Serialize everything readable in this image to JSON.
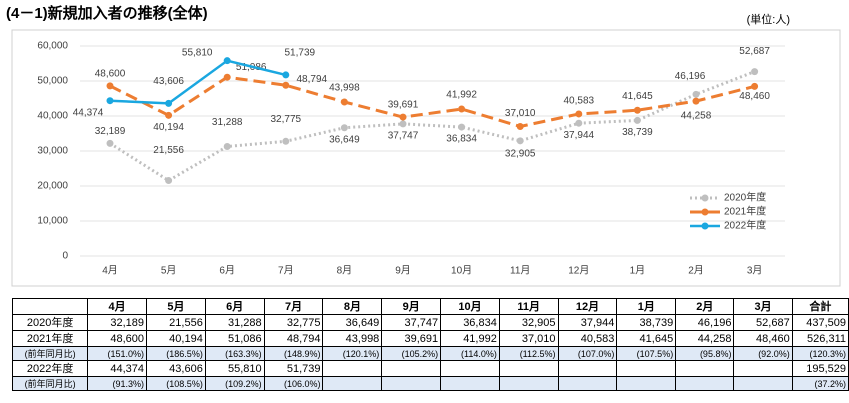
{
  "chart_data": {
    "type": "line",
    "title": "(4－1)新規加入者の推移(全体)",
    "unit_label": "(単位:人)",
    "categories": [
      "4月",
      "5月",
      "6月",
      "7月",
      "8月",
      "9月",
      "10月",
      "11月",
      "12月",
      "1月",
      "2月",
      "3月"
    ],
    "ylim": [
      0,
      60000
    ],
    "yticks": [
      0,
      {
        "value": 10000,
        "label": "10,000"
      },
      {
        "value": 20000,
        "label": "20,000"
      },
      {
        "value": 30000,
        "label": "30,000"
      },
      {
        "value": 40000,
        "label": "40,000"
      },
      {
        "value": 50000,
        "label": "50,000"
      },
      {
        "value": 60000,
        "label": "60,000"
      }
    ],
    "grid": true,
    "legend": "right",
    "series": [
      {
        "name": "2020年度",
        "color": "#bfbfbf",
        "style": "dotted",
        "values": [
          32189,
          21556,
          31288,
          32775,
          36649,
          37747,
          36834,
          32905,
          37944,
          38739,
          46196,
          52687
        ],
        "value_labels": [
          "32,189",
          "21,556",
          "31,288",
          "32,775",
          "36,649",
          "37,747",
          "36,834",
          "32,905",
          "37,944",
          "38,739",
          "46,196",
          "52,687"
        ]
      },
      {
        "name": "2021年度",
        "color": "#ed7d31",
        "style": "dashed",
        "values": [
          48600,
          40194,
          51086,
          48794,
          43998,
          39691,
          41992,
          37010,
          40583,
          41645,
          44258,
          48460
        ],
        "value_labels": [
          "48,600",
          "40,194",
          "51,086",
          "48,794",
          "43,998",
          "39,691",
          "41,992",
          "37,010",
          "40,583",
          "41,645",
          "44,258",
          "48,460"
        ]
      },
      {
        "name": "2022年度",
        "color": "#1aa7e0",
        "style": "solid",
        "values": [
          44374,
          43606,
          55810,
          51739,
          null,
          null,
          null,
          null,
          null,
          null,
          null,
          null
        ],
        "value_labels": [
          "44,374",
          "43,606",
          "55,810",
          "51,739",
          null,
          null,
          null,
          null,
          null,
          null,
          null,
          null
        ]
      }
    ]
  },
  "table": {
    "header": [
      null,
      "4月",
      "5月",
      "6月",
      "7月",
      "8月",
      "9月",
      "10月",
      "11月",
      "12月",
      "1月",
      "2月",
      "3月",
      "合計"
    ],
    "rows": [
      [
        "2020年度",
        "32,189",
        "21,556",
        "31,288",
        "32,775",
        "36,649",
        "37,747",
        "36,834",
        "32,905",
        "37,944",
        "38,739",
        "46,196",
        "52,687",
        "437,509"
      ],
      [
        "2021年度",
        "48,600",
        "40,194",
        "51,086",
        "48,794",
        "43,998",
        "39,691",
        "41,992",
        "37,010",
        "40,583",
        "41,645",
        "44,258",
        "48,460",
        "526,311"
      ],
      [
        "(前年同月比)",
        "(151.0%)",
        "(186.5%)",
        "(163.3%)",
        "(148.9%)",
        "(120.1%)",
        "(105.2%)",
        "(114.0%)",
        "(112.5%)",
        "(107.0%)",
        "(107.5%)",
        "(95.8%)",
        "(92.0%)",
        "(120.3%)"
      ],
      [
        "2022年度",
        "44,374",
        "43,606",
        "55,810",
        "51,739",
        null,
        null,
        null,
        null,
        null,
        null,
        null,
        null,
        "195,529"
      ],
      [
        "(前年同月比)",
        "(91.3%)",
        "(108.5%)",
        "(109.2%)",
        "(106.0%)",
        null,
        null,
        null,
        null,
        null,
        null,
        null,
        null,
        "(37.2%)"
      ]
    ]
  }
}
